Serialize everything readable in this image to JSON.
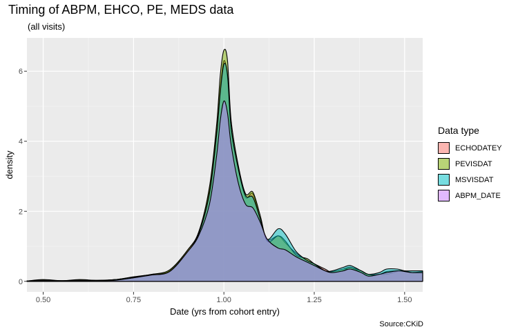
{
  "chart_data": {
    "type": "area",
    "title": "Timing of ABPM, EHCO, PE, MEDS data",
    "subtitle": "(all visits)",
    "xlabel": "Date (yrs from cohort entry)",
    "ylabel": "density",
    "caption": "Source:CKiD",
    "xlim": [
      0.455,
      1.55
    ],
    "ylim": [
      -0.3,
      6.95
    ],
    "x_ticks": [
      0.5,
      0.75,
      1.0,
      1.25,
      1.5
    ],
    "x_tick_labels": [
      "0.50",
      "0.75",
      "1.00",
      "1.25",
      "1.50"
    ],
    "y_ticks": [
      0,
      2,
      4,
      6
    ],
    "y_tick_labels": [
      "0",
      "2",
      "4",
      "6"
    ],
    "grid": true,
    "legend_title": "Data type",
    "legend_position": "right",
    "series": [
      {
        "name": "ECHODATEY",
        "color": "#F8766D",
        "x": [
          0.455,
          0.5,
          0.55,
          0.6,
          0.65,
          0.7,
          0.75,
          0.8,
          0.85,
          0.9,
          0.93,
          0.96,
          0.98,
          0.99,
          1.0,
          1.01,
          1.02,
          1.04,
          1.06,
          1.08,
          1.1,
          1.12,
          1.15,
          1.17,
          1.2,
          1.23,
          1.25,
          1.28,
          1.3,
          1.33,
          1.35,
          1.38,
          1.4,
          1.43,
          1.45,
          1.48,
          1.5,
          1.52,
          1.55
        ],
        "y": [
          0.01,
          0.04,
          0.02,
          0.04,
          0.03,
          0.05,
          0.12,
          0.2,
          0.3,
          0.9,
          1.4,
          2.6,
          4.3,
          5.5,
          6.3,
          5.8,
          4.3,
          3.2,
          2.4,
          2.5,
          1.8,
          1.2,
          1.3,
          1.1,
          0.8,
          0.6,
          0.5,
          0.35,
          0.25,
          0.3,
          0.4,
          0.25,
          0.15,
          0.2,
          0.2,
          0.28,
          0.3,
          0.25,
          0.25
        ]
      },
      {
        "name": "PEVISDAT",
        "color": "#7CAE00",
        "x": [
          0.455,
          0.5,
          0.55,
          0.6,
          0.65,
          0.7,
          0.75,
          0.8,
          0.85,
          0.9,
          0.93,
          0.96,
          0.98,
          0.99,
          1.0,
          1.01,
          1.02,
          1.04,
          1.06,
          1.08,
          1.1,
          1.12,
          1.15,
          1.17,
          1.2,
          1.23,
          1.25,
          1.28,
          1.3,
          1.33,
          1.35,
          1.38,
          1.4,
          1.43,
          1.45,
          1.48,
          1.5,
          1.52,
          1.55
        ],
        "y": [
          0.01,
          0.05,
          0.02,
          0.05,
          0.03,
          0.05,
          0.13,
          0.2,
          0.33,
          0.9,
          1.4,
          2.7,
          4.5,
          5.9,
          6.6,
          6.3,
          4.6,
          3.3,
          2.5,
          2.55,
          1.9,
          1.15,
          1.3,
          1.15,
          0.75,
          0.65,
          0.5,
          0.3,
          0.28,
          0.35,
          0.4,
          0.3,
          0.2,
          0.2,
          0.28,
          0.3,
          0.3,
          0.25,
          0.28
        ]
      },
      {
        "name": "MSVISDAT",
        "color": "#00BFC4",
        "x": [
          0.455,
          0.5,
          0.55,
          0.6,
          0.65,
          0.7,
          0.75,
          0.8,
          0.85,
          0.9,
          0.93,
          0.96,
          0.98,
          0.99,
          1.0,
          1.01,
          1.02,
          1.04,
          1.06,
          1.08,
          1.1,
          1.12,
          1.15,
          1.17,
          1.2,
          1.23,
          1.25,
          1.28,
          1.3,
          1.33,
          1.35,
          1.38,
          1.4,
          1.43,
          1.45,
          1.48,
          1.5,
          1.52,
          1.55
        ],
        "y": [
          0.01,
          0.03,
          0.02,
          0.03,
          0.02,
          0.05,
          0.12,
          0.18,
          0.28,
          0.85,
          1.35,
          2.5,
          4.2,
          5.4,
          6.2,
          5.9,
          4.4,
          3.2,
          2.45,
          2.4,
          1.8,
          1.2,
          1.5,
          1.35,
          0.85,
          0.6,
          0.5,
          0.3,
          0.3,
          0.4,
          0.45,
          0.3,
          0.2,
          0.25,
          0.35,
          0.35,
          0.3,
          0.3,
          0.3
        ]
      },
      {
        "name": "ABPM_DATE",
        "color": "#C77CFF",
        "x": [
          0.455,
          0.5,
          0.55,
          0.6,
          0.65,
          0.7,
          0.75,
          0.8,
          0.85,
          0.9,
          0.93,
          0.96,
          0.98,
          0.99,
          1.0,
          1.01,
          1.02,
          1.04,
          1.06,
          1.08,
          1.1,
          1.12,
          1.15,
          1.17,
          1.2,
          1.23,
          1.25,
          1.28,
          1.3,
          1.33,
          1.35,
          1.38,
          1.4,
          1.43,
          1.45,
          1.48,
          1.5,
          1.52,
          1.55
        ],
        "y": [
          0.01,
          0.02,
          0.01,
          0.02,
          0.02,
          0.03,
          0.1,
          0.18,
          0.28,
          0.85,
          1.3,
          2.2,
          3.6,
          4.6,
          5.15,
          4.8,
          3.9,
          2.8,
          2.2,
          2.1,
          1.7,
          1.2,
          0.95,
          0.9,
          0.7,
          0.55,
          0.45,
          0.3,
          0.25,
          0.3,
          0.35,
          0.25,
          0.15,
          0.2,
          0.25,
          0.3,
          0.28,
          0.25,
          0.25
        ]
      }
    ]
  }
}
